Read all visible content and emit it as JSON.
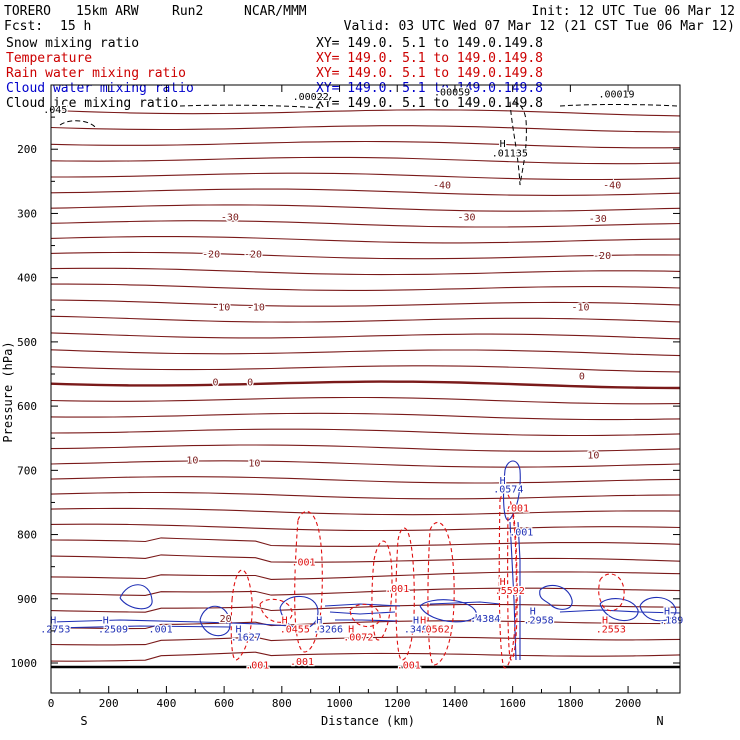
{
  "header": {
    "model": "TORERO",
    "resolution": "15km ARW",
    "run": "Run2",
    "org": "NCAR/MMM",
    "init": "Init: 12 UTC Tue 06 Mar 12",
    "fcst_label": "Fcst:",
    "fcst_value": "15 h",
    "valid": "Valid: 03 UTC Wed 07 Mar 12 (21 CST Tue 06 Mar 12)"
  },
  "legend": [
    {
      "name": "Snow mixing ratio",
      "color": "#000000",
      "xy": "XY= 149.0.  5.1 to 149.0.149.8"
    },
    {
      "name": "Temperature",
      "color": "#cc0000",
      "xy": "XY= 149.0.  5.1 to 149.0.149.8"
    },
    {
      "name": "Rain water mixing ratio",
      "color": "#cc0000",
      "xy": "XY= 149.0.  5.1 to 149.0.149.8"
    },
    {
      "name": "Cloud water mixing ratio",
      "color": "#0000cc",
      "xy": "XY= 149.0.  5.1 to 149.0.149.8"
    },
    {
      "name": "Cloud ice mixing ratio",
      "color": "#000000",
      "xy": "XY= 149.0.  5.1 to 149.0.149.8"
    }
  ],
  "chart_data": {
    "type": "cross-section contour",
    "title": "Vertical cross-section",
    "xlabel": "Distance (km)",
    "ylabel": "Pressure (hPa)",
    "xlim": [
      0,
      2180
    ],
    "ylim": [
      1050,
      100
    ],
    "x_ticks": [
      0,
      200,
      400,
      600,
      800,
      1000,
      1200,
      1400,
      1600,
      1800,
      2000
    ],
    "y_ticks": [
      200,
      300,
      400,
      500,
      600,
      700,
      800,
      900,
      1000
    ],
    "end_labels": {
      "left": "S",
      "right": "N"
    },
    "temperature_labels": [
      {
        "text": "-40",
        "x": 1355,
        "p": 255
      },
      {
        "text": "-40",
        "x": 1945,
        "p": 255
      },
      {
        "text": "-30",
        "x": 620,
        "p": 305
      },
      {
        "text": "-30",
        "x": 1440,
        "p": 305
      },
      {
        "text": "-30",
        "x": 1895,
        "p": 307
      },
      {
        "text": "-20",
        "x": 555,
        "p": 362
      },
      {
        "text": "-20",
        "x": 700,
        "p": 362
      },
      {
        "text": "-20",
        "x": 1910,
        "p": 365
      },
      {
        "text": "-10",
        "x": 590,
        "p": 445
      },
      {
        "text": "-10",
        "x": 710,
        "p": 445
      },
      {
        "text": "-10",
        "x": 1835,
        "p": 445
      },
      {
        "text": "0",
        "x": 570,
        "p": 562
      },
      {
        "text": "0",
        "x": 690,
        "p": 562
      },
      {
        "text": "0",
        "x": 1840,
        "p": 552
      },
      {
        "text": "10",
        "x": 490,
        "p": 683
      },
      {
        "text": "10",
        "x": 705,
        "p": 688
      },
      {
        "text": "10",
        "x": 1880,
        "p": 675
      },
      {
        "text": "20",
        "x": 605,
        "p": 930
      }
    ],
    "snow_labels": [
      {
        "text": ".00059",
        "x": 1390,
        "p": 110
      },
      {
        "text": ".00019",
        "x": 1960,
        "p": 113
      },
      {
        "text": ".00022",
        "x": 900,
        "p": 117
      },
      {
        "text": ".045",
        "x": 15,
        "p": 137
      },
      {
        "text": "H",
        "x": 1565,
        "p": 190
      },
      {
        "text": ".01135",
        "x": 1590,
        "p": 205
      }
    ],
    "cloud_water_labels": [
      {
        "text": "H",
        "x": 1565,
        "p": 715
      },
      {
        "text": ".0574",
        "x": 1585,
        "p": 728
      },
      {
        "text": ".001",
        "x": 1630,
        "p": 795
      },
      {
        "text": "H",
        "x": 8,
        "p": 932
      },
      {
        "text": ".2753",
        "x": 15,
        "p": 946
      },
      {
        "text": "H",
        "x": 190,
        "p": 932
      },
      {
        "text": ".2509",
        "x": 215,
        "p": 946
      },
      {
        "text": ".001",
        "x": 380,
        "p": 946
      },
      {
        "text": "H",
        "x": 650,
        "p": 946
      },
      {
        "text": ".1627",
        "x": 675,
        "p": 959
      },
      {
        "text": "H",
        "x": 930,
        "p": 932
      },
      {
        "text": ".3266",
        "x": 960,
        "p": 946
      },
      {
        "text": "H",
        "x": 1265,
        "p": 932
      },
      {
        "text": ".3402",
        "x": 1275,
        "p": 946
      },
      {
        "text": "H",
        "x": 1480,
        "p": 928
      },
      {
        "text": ".4384",
        "x": 1505,
        "p": 930
      },
      {
        "text": "H",
        "x": 1670,
        "p": 918
      },
      {
        "text": ".2958",
        "x": 1690,
        "p": 932
      },
      {
        "text": "H",
        "x": 2135,
        "p": 918
      },
      {
        "text": ".189",
        "x": 2150,
        "p": 932
      }
    ],
    "rain_labels": [
      {
        "text": ".001",
        "x": 1615,
        "p": 758
      },
      {
        "text": ".001",
        "x": 875,
        "p": 842
      },
      {
        "text": ".001",
        "x": 1200,
        "p": 883
      },
      {
        "text": "H",
        "x": 1565,
        "p": 872
      },
      {
        "text": ".5592",
        "x": 1590,
        "p": 886
      },
      {
        "text": "H",
        "x": 810,
        "p": 932
      },
      {
        "text": ".0455",
        "x": 845,
        "p": 946
      },
      {
        "text": "H",
        "x": 1040,
        "p": 946
      },
      {
        "text": ".0072",
        "x": 1065,
        "p": 959
      },
      {
        "text": "H",
        "x": 1290,
        "p": 932
      },
      {
        "text": ".0562",
        "x": 1330,
        "p": 946
      },
      {
        "text": "H",
        "x": 1920,
        "p": 932
      },
      {
        "text": ".2553",
        "x": 1940,
        "p": 946
      },
      {
        "text": ".001",
        "x": 715,
        "p": 1002
      },
      {
        "text": ".001",
        "x": 870,
        "p": 997
      },
      {
        "text": ".001",
        "x": 1240,
        "p": 1002
      }
    ]
  }
}
